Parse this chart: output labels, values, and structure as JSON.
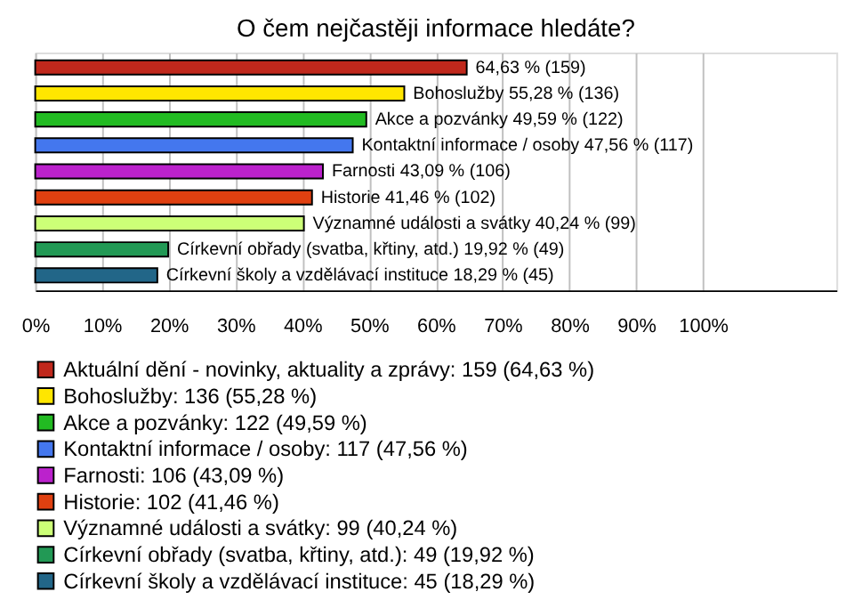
{
  "chart_data": {
    "type": "bar",
    "orientation": "horizontal",
    "title": "O čem nejčastěji informace hledáte?",
    "categories": [
      null,
      null,
      null,
      null,
      null,
      null,
      null,
      null,
      null
    ],
    "series": [
      {
        "name": "Aktuální dění - novinky, aktuality a zprávy: 159 (64,63 %)",
        "color": "#c0281c",
        "values": [
          64.63,
          null,
          null,
          null,
          null,
          null,
          null,
          null,
          null
        ],
        "value_labels": [
          "64,63 % (159)",
          null,
          null,
          null,
          null,
          null,
          null,
          null,
          null
        ]
      },
      {
        "name": "Bohoslužby: 136 (55,28 %)",
        "color": "#ffe600",
        "values": [
          null,
          55.28,
          null,
          null,
          null,
          null,
          null,
          null,
          null
        ],
        "value_labels": [
          null,
          "Bohoslužby 55,28 % (136)",
          null,
          null,
          null,
          null,
          null,
          null,
          null
        ]
      },
      {
        "name": "Akce a pozvánky: 122 (49,59 %)",
        "color": "#22bb22",
        "values": [
          null,
          null,
          49.59,
          null,
          null,
          null,
          null,
          null,
          null
        ],
        "value_labels": [
          null,
          null,
          "Akce a pozvánky 49,59 % (122)",
          null,
          null,
          null,
          null,
          null,
          null
        ]
      },
      {
        "name": "Kontaktní informace / osoby: 117 (47,56 %)",
        "color": "#4477ee",
        "values": [
          null,
          null,
          null,
          47.56,
          null,
          null,
          null,
          null,
          null
        ],
        "value_labels": [
          null,
          null,
          null,
          "Kontaktní informace / osoby 47,56 % (117)",
          null,
          null,
          null,
          null,
          null
        ]
      },
      {
        "name": "Farnosti: 106 (43,09 %)",
        "color": "#bb22cc",
        "values": [
          null,
          null,
          null,
          null,
          43.09,
          null,
          null,
          null,
          null
        ],
        "value_labels": [
          null,
          null,
          null,
          null,
          "Farnosti 43,09 % (106)",
          null,
          null,
          null,
          null
        ]
      },
      {
        "name": "Historie: 102 (41,46 %)",
        "color": "#e04010",
        "values": [
          null,
          null,
          null,
          null,
          null,
          41.46,
          null,
          null,
          null
        ],
        "value_labels": [
          null,
          null,
          null,
          null,
          null,
          "Historie 41,46 % (102)",
          null,
          null,
          null
        ]
      },
      {
        "name": "Významné události a svátky: 99 (40,24 %)",
        "color": "#ccff77",
        "values": [
          null,
          null,
          null,
          null,
          null,
          null,
          40.24,
          null,
          null
        ],
        "value_labels": [
          null,
          null,
          null,
          null,
          null,
          null,
          "Významné události a svátky 40,24 % (99)",
          null,
          null
        ]
      },
      {
        "name": "Církevní obřady (svatba, křtiny, atd.): 49 (19,92 %)",
        "color": "#229955",
        "values": [
          null,
          null,
          null,
          null,
          null,
          null,
          null,
          19.92,
          null
        ],
        "value_labels": [
          null,
          null,
          null,
          null,
          null,
          null,
          null,
          "Církevní obřady (svatba, křtiny, atd.) 19,92 % (49)",
          null
        ]
      },
      {
        "name": "Církevní školy a vzdělávací instituce: 45 (18,29 %)",
        "color": "#226688",
        "values": [
          null,
          null,
          null,
          null,
          null,
          null,
          null,
          null,
          18.29
        ],
        "value_labels": [
          null,
          null,
          null,
          null,
          null,
          null,
          null,
          null,
          "Církevní školy a vzdělávací instituce 18,29 % (45)"
        ]
      }
    ],
    "xlim": [
      0,
      120
    ],
    "xticks": [
      {
        "value": 0,
        "label": "0%"
      },
      {
        "value": 10,
        "label": "10%"
      },
      {
        "value": 20,
        "label": "20%"
      },
      {
        "value": 30,
        "label": "30%"
      },
      {
        "value": 40,
        "label": "40%"
      },
      {
        "value": 50,
        "label": "50%"
      },
      {
        "value": 60,
        "label": "60%"
      },
      {
        "value": 70,
        "label": "70%"
      },
      {
        "value": 80,
        "label": "80%"
      },
      {
        "value": 90,
        "label": "90%"
      },
      {
        "value": 100,
        "label": "100%"
      }
    ],
    "grid": "x",
    "legend": "bottom",
    "tick_labels": "x"
  }
}
